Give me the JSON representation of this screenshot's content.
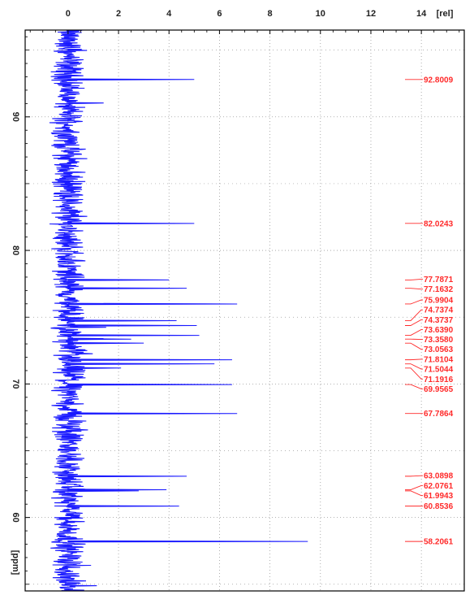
{
  "chart_data": {
    "type": "line",
    "orientation": "vertical-spectrum",
    "x_unit_label": "[rel]",
    "y_unit_label": "[ppm]",
    "xlim": [
      -1.7,
      15.7
    ],
    "ylim": [
      54.5,
      96.5
    ],
    "x_ticks": [
      0,
      2,
      4,
      6,
      8,
      10,
      12,
      14
    ],
    "y_ticks": [
      90,
      80,
      70,
      60
    ],
    "grid": true,
    "series": [
      {
        "color": "#1a1aff",
        "peaks": [
          {
            "ppm": 92.8009,
            "rel": 5.0
          },
          {
            "ppm": 82.0243,
            "rel": 5.0
          },
          {
            "ppm": 77.7871,
            "rel": 4.0
          },
          {
            "ppm": 77.1632,
            "rel": 4.7
          },
          {
            "ppm": 75.9904,
            "rel": 6.7
          },
          {
            "ppm": 74.7374,
            "rel": 4.3
          },
          {
            "ppm": 74.3737,
            "rel": 5.1
          },
          {
            "ppm": 73.639,
            "rel": 5.2
          },
          {
            "ppm": 73.358,
            "rel": 2.5
          },
          {
            "ppm": 73.0563,
            "rel": 3.0
          },
          {
            "ppm": 71.8104,
            "rel": 6.5
          },
          {
            "ppm": 71.5044,
            "rel": 5.8
          },
          {
            "ppm": 71.1916,
            "rel": 2.1
          },
          {
            "ppm": 69.9565,
            "rel": 6.5
          },
          {
            "ppm": 67.7864,
            "rel": 6.7
          },
          {
            "ppm": 63.0898,
            "rel": 4.7
          },
          {
            "ppm": 62.0761,
            "rel": 3.9
          },
          {
            "ppm": 61.9943,
            "rel": 2.8
          },
          {
            "ppm": 60.8536,
            "rel": 4.4
          },
          {
            "ppm": 58.2061,
            "rel": 9.5
          }
        ]
      }
    ],
    "peak_labels": [
      "92.8009",
      "82.0243",
      "77.7871",
      "77.1632",
      "75.9904",
      "74.7374",
      "74.3737",
      "73.6390",
      "73.3580",
      "73.0563",
      "71.8104",
      "71.5044",
      "71.1916",
      "69.9565",
      "67.7864",
      "63.0898",
      "62.0761",
      "61.9943",
      "60.8536",
      "58.2061"
    ],
    "colors": {
      "spectrum": "#1a1aff",
      "peak_labels": "#ff2a2a",
      "frame": "#000000",
      "grid": "#9a9a9a"
    }
  }
}
